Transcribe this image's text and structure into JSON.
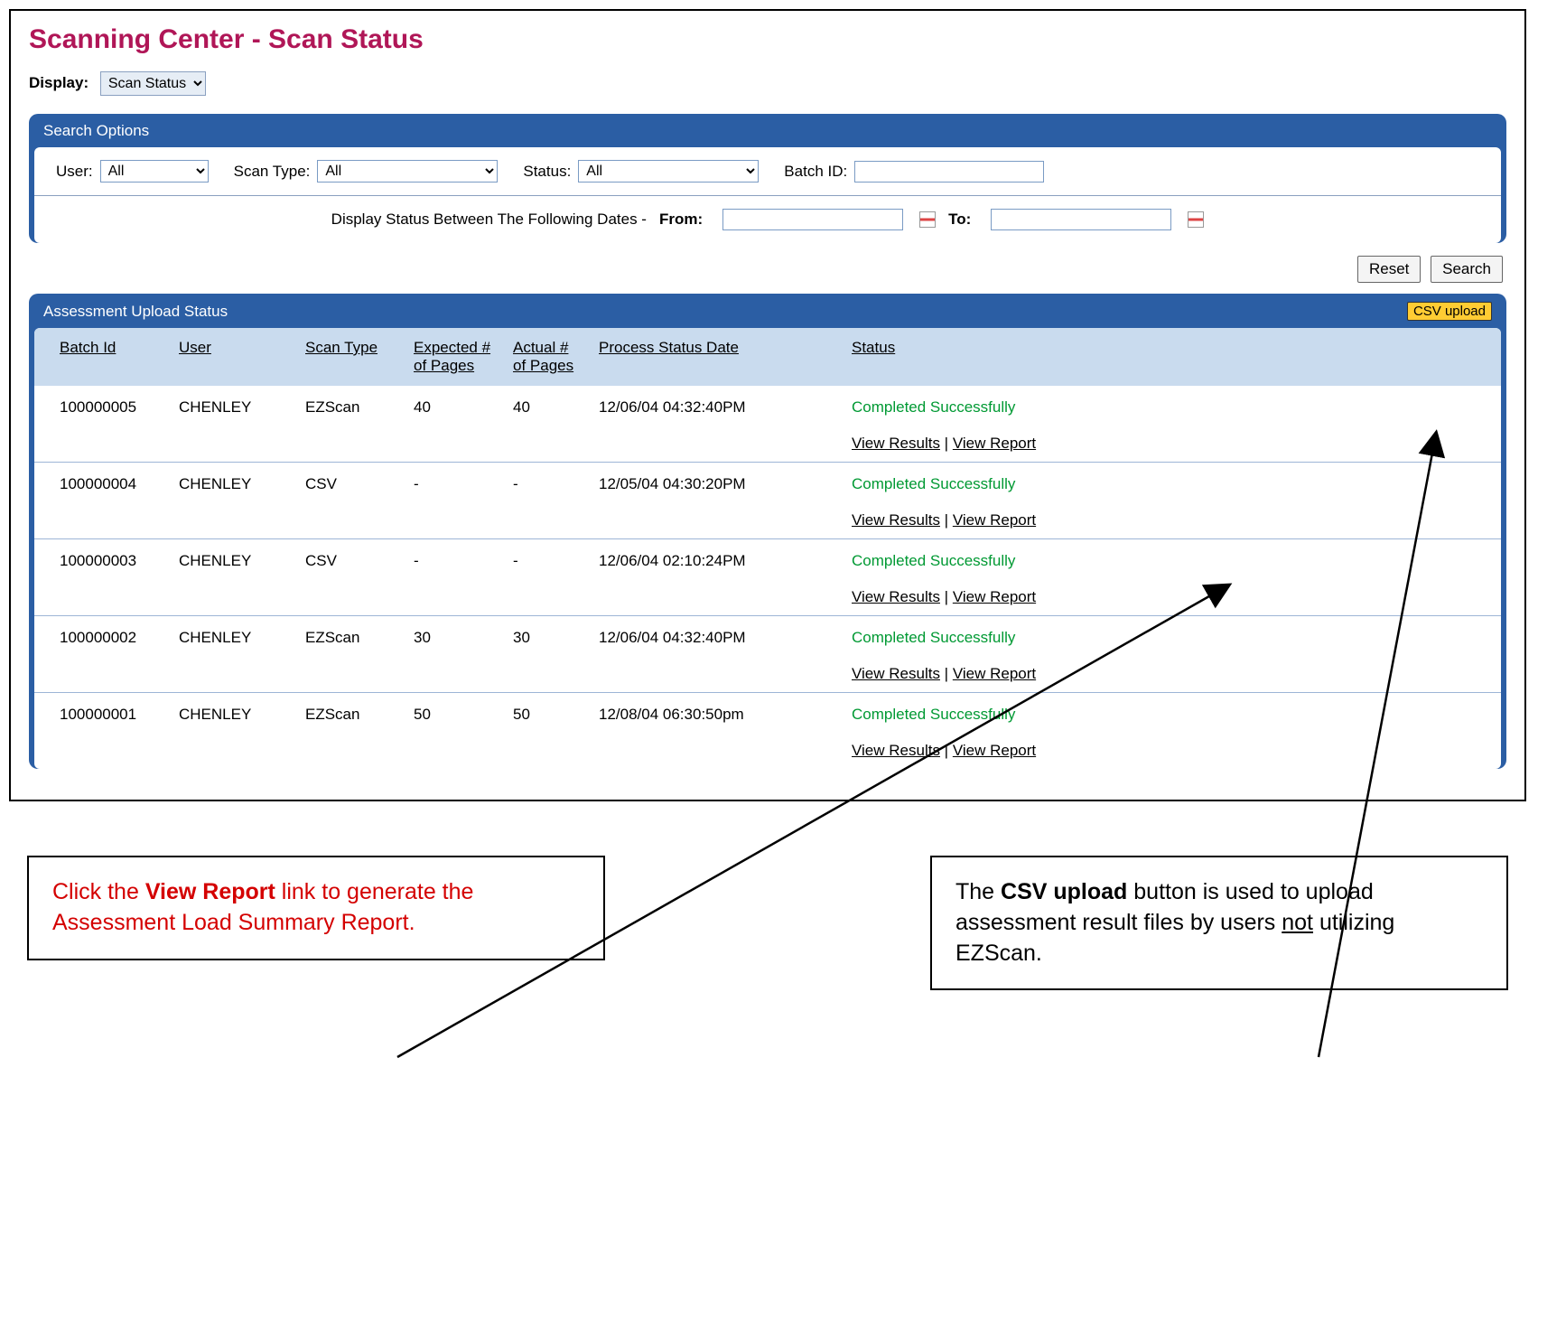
{
  "title": "Scanning Center - Scan Status",
  "display_label": "Display:",
  "display_value": "Scan Status",
  "search": {
    "panel_title": "Search Options",
    "user_label": "User:",
    "user_value": "All",
    "scan_type_label": "Scan Type:",
    "scan_type_value": "All",
    "status_label": "Status:",
    "status_value": "All",
    "batch_id_label": "Batch ID:",
    "batch_id_value": "",
    "date_range_label": "Display Status Between The Following Dates  -",
    "from_label": "From:",
    "from_value": "",
    "to_label": "To:",
    "to_value": ""
  },
  "buttons": {
    "reset": "Reset",
    "search": "Search",
    "csv_upload": "CSV upload"
  },
  "results_panel_title": "Assessment Upload Status",
  "columns": {
    "batch_id": "Batch Id",
    "user": "User",
    "scan_type": "Scan Type",
    "expected": "Expected # of Pages",
    "actual": "Actual # of Pages",
    "process_date": "Process Status Date",
    "status": "Status"
  },
  "status_text": "Completed Successfully",
  "view_results": "View Results",
  "view_report": "View Report",
  "rows": [
    {
      "batch": "100000005",
      "user": "CHENLEY",
      "scan": "EZScan",
      "exp": "40",
      "act": "40",
      "date": "12/06/04 04:32:40PM"
    },
    {
      "batch": "100000004",
      "user": "CHENLEY",
      "scan": "CSV",
      "exp": "-",
      "act": "-",
      "date": "12/05/04 04:30:20PM"
    },
    {
      "batch": "100000003",
      "user": "CHENLEY",
      "scan": "CSV",
      "exp": "-",
      "act": "-",
      "date": "12/06/04 02:10:24PM"
    },
    {
      "batch": "100000002",
      "user": "CHENLEY",
      "scan": "EZScan",
      "exp": "30",
      "act": "30",
      "date": "12/06/04 04:32:40PM"
    },
    {
      "batch": "100000001",
      "user": "CHENLEY",
      "scan": "EZScan",
      "exp": "50",
      "act": "50",
      "date": "12/08/04 06:30:50pm"
    }
  ],
  "callouts": {
    "left_pre": "Click the ",
    "left_bold": "View Report",
    "left_post": " link to generate the Assessment Load Summary Report.",
    "right_pre": "The ",
    "right_bold": "CSV upload",
    "right_mid": " button is used to upload assessment result files by users ",
    "right_under": "not",
    "right_post": " utilizing EZScan."
  },
  "colors": {
    "title": "#b01657",
    "panel": "#2b5ea4",
    "header_row": "#c9dbee",
    "status_ok": "#009933",
    "csv_btn": "#ffcc33",
    "callout_red": "#d40000"
  }
}
